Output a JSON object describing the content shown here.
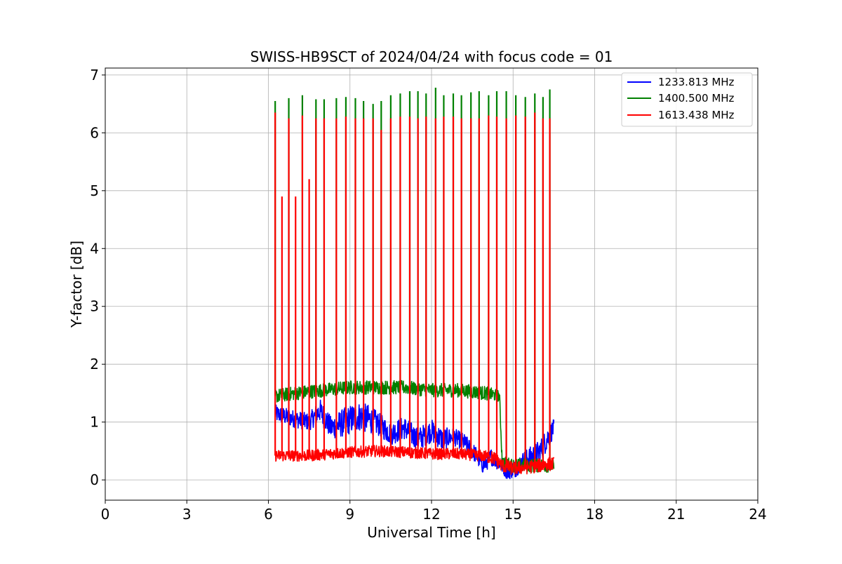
{
  "chart_data": {
    "type": "line",
    "title": "SWISS-HB9SCT of 2024/04/24 with focus code = 01",
    "xlabel": "Universal Time [h]",
    "ylabel": "Y-factor [dB]",
    "xlim": [
      0,
      24
    ],
    "ylim": [
      -0.35,
      7.12
    ],
    "xticks": [
      "0",
      "3",
      "6",
      "9",
      "12",
      "15",
      "18",
      "21",
      "24"
    ],
    "yticks": [
      "0",
      "1",
      "2",
      "3",
      "4",
      "5",
      "6",
      "7"
    ],
    "grid": true,
    "legend_position": "top-right",
    "data_start_h": 6.25,
    "data_end_h": 16.5,
    "series": [
      {
        "name": "1233.813 MHz",
        "color": "#0000ff",
        "x": [
          6.25,
          6.6,
          7.0,
          7.5,
          7.9,
          8.3,
          8.8,
          9.3,
          9.7,
          10.1,
          10.5,
          11.0,
          11.5,
          12.0,
          12.4,
          12.8,
          13.2,
          13.6,
          13.9,
          14.2,
          14.5,
          14.8,
          15.1,
          15.4,
          15.7,
          16.0,
          16.3,
          16.5
        ],
        "values": [
          1.15,
          1.1,
          1.05,
          1.0,
          1.2,
          0.9,
          1.0,
          1.1,
          1.05,
          0.95,
          0.8,
          0.9,
          0.7,
          0.85,
          0.7,
          0.75,
          0.65,
          0.45,
          0.25,
          0.4,
          0.3,
          0.15,
          0.2,
          0.35,
          0.4,
          0.5,
          0.75,
          0.9
        ],
        "spread": [
          0.15,
          0.15,
          0.15,
          0.15,
          0.2,
          0.2,
          0.25,
          0.25,
          0.25,
          0.2,
          0.2,
          0.2,
          0.2,
          0.2,
          0.2,
          0.15,
          0.15,
          0.15,
          0.15,
          0.15,
          0.15,
          0.15,
          0.15,
          0.15,
          0.2,
          0.2,
          0.2,
          0.15
        ]
      },
      {
        "name": "1400.500 MHz",
        "color": "#008000",
        "x": [
          6.25,
          7.0,
          8.0,
          9.0,
          10.0,
          11.0,
          12.0,
          13.0,
          14.0,
          14.5,
          14.6,
          15.0,
          15.5,
          16.0,
          16.5
        ],
        "values": [
          1.45,
          1.5,
          1.55,
          1.6,
          1.6,
          1.6,
          1.55,
          1.55,
          1.5,
          1.45,
          0.3,
          0.25,
          0.25,
          0.25,
          0.25
        ],
        "spread": [
          0.12,
          0.12,
          0.12,
          0.12,
          0.12,
          0.12,
          0.12,
          0.12,
          0.12,
          0.1,
          0.12,
          0.12,
          0.12,
          0.12,
          0.12
        ],
        "spikes_x": [
          6.25,
          6.75,
          7.25,
          7.75,
          8.05,
          8.5,
          8.85,
          9.2,
          9.5,
          9.85,
          10.15,
          10.5,
          10.85,
          11.2,
          11.5,
          11.8,
          12.15,
          12.45,
          12.8,
          13.1,
          13.45,
          13.75,
          14.1,
          14.4,
          14.75,
          15.1,
          15.45,
          15.8,
          16.1,
          16.35
        ],
        "spikes_y": [
          6.55,
          6.6,
          6.65,
          6.58,
          6.58,
          6.6,
          6.62,
          6.6,
          6.55,
          6.5,
          6.55,
          6.65,
          6.68,
          6.72,
          6.72,
          6.68,
          6.78,
          6.65,
          6.68,
          6.65,
          6.7,
          6.72,
          6.65,
          6.72,
          6.72,
          6.65,
          6.62,
          6.68,
          6.62,
          6.75
        ]
      },
      {
        "name": "1613.438 MHz",
        "color": "#ff0000",
        "x": [
          6.25,
          7.5,
          9.0,
          10.0,
          11.0,
          12.0,
          13.0,
          13.8,
          14.3,
          14.6,
          15.0,
          15.5,
          16.0,
          16.5
        ],
        "values": [
          0.42,
          0.42,
          0.48,
          0.5,
          0.48,
          0.45,
          0.45,
          0.42,
          0.38,
          0.25,
          0.2,
          0.22,
          0.25,
          0.28
        ],
        "spread": [
          0.1,
          0.1,
          0.1,
          0.1,
          0.1,
          0.1,
          0.1,
          0.1,
          0.12,
          0.12,
          0.12,
          0.12,
          0.12,
          0.12
        ],
        "spikes_x": [
          6.25,
          6.5,
          6.75,
          7.0,
          7.25,
          7.5,
          7.75,
          8.05,
          8.5,
          8.85,
          9.2,
          9.5,
          9.85,
          10.15,
          10.5,
          10.85,
          11.2,
          11.5,
          11.8,
          12.15,
          12.45,
          12.8,
          13.1,
          13.45,
          13.75,
          14.1,
          14.4,
          14.75,
          15.1,
          15.45,
          15.8,
          16.1,
          16.35
        ],
        "spikes_y": [
          6.35,
          4.9,
          6.25,
          4.9,
          6.3,
          5.2,
          6.25,
          6.25,
          6.25,
          6.28,
          6.25,
          6.25,
          6.25,
          6.05,
          6.25,
          6.28,
          6.28,
          6.25,
          6.28,
          6.25,
          6.28,
          6.28,
          6.25,
          6.25,
          6.25,
          6.3,
          6.28,
          6.25,
          6.3,
          6.28,
          6.35,
          6.25,
          6.25
        ]
      }
    ]
  }
}
